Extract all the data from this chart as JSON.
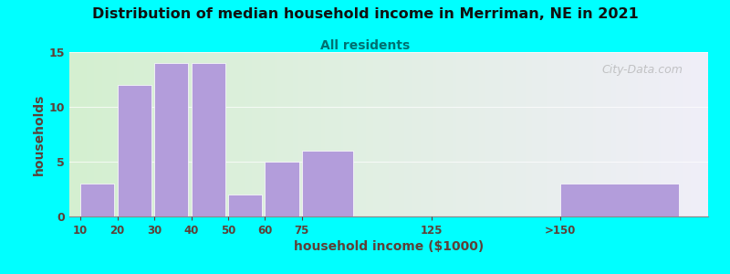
{
  "title": "Distribution of median household income in Merriman, NE in 2021",
  "subtitle": "All residents",
  "xlabel": "household income ($1000)",
  "ylabel": "households",
  "background_fig": "#00FFFF",
  "bar_color": "#b39ddb",
  "categories": [
    "10",
    "20",
    "30",
    "40",
    "50",
    "60",
    "75",
    "125",
    ">150"
  ],
  "values": [
    3,
    12,
    14,
    14,
    2,
    5,
    6,
    0,
    3
  ],
  "ylim": [
    0,
    15
  ],
  "yticks": [
    0,
    5,
    10,
    15
  ],
  "title_color": "#111111",
  "subtitle_color": "#007070",
  "axis_label_color": "#5d4037",
  "tick_color": "#5d4037",
  "watermark_text": "City-Data.com",
  "grad_left_color": "#d4f0d0",
  "grad_right_color": "#f0eef8",
  "positions": [
    0,
    1,
    2,
    3,
    4,
    5,
    6,
    9.5,
    13
  ],
  "widths": [
    1,
    1,
    1,
    1,
    1,
    1,
    1.5,
    0.01,
    3.5
  ],
  "xlim_min": -0.3,
  "xlim_max": 17.0
}
